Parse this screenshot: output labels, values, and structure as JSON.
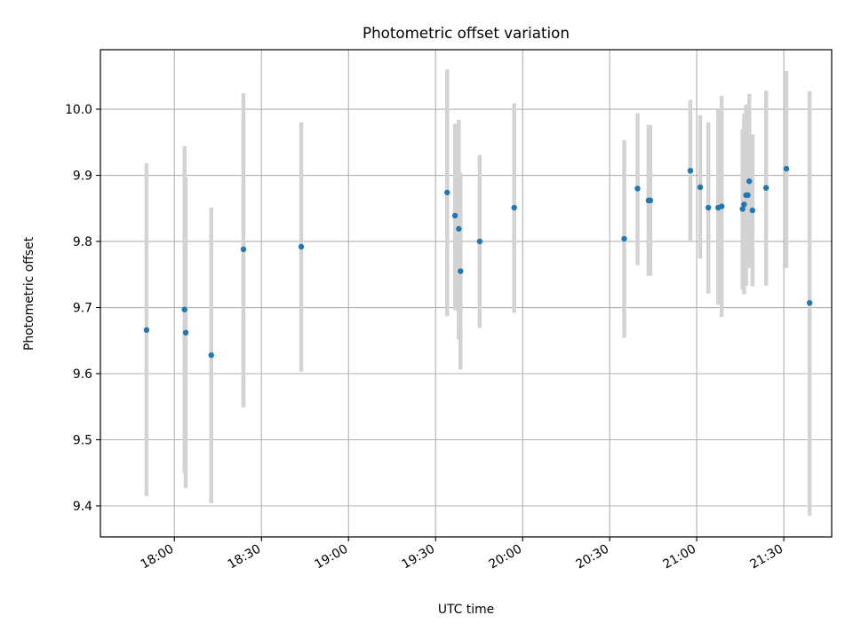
{
  "chart_data": {
    "type": "scatter",
    "title": "Photometric offset variation",
    "xlabel": "UTC time",
    "ylabel": "Photometric offset",
    "grid": true,
    "x_unit": "minutes since 00:00 UTC",
    "xlim": [
      1054.5,
      1306.5
    ],
    "ylim": [
      9.353,
      10.09
    ],
    "xticks": [
      {
        "value": 1080,
        "label": "18:00"
      },
      {
        "value": 1110,
        "label": "18:30"
      },
      {
        "value": 1140,
        "label": "19:00"
      },
      {
        "value": 1170,
        "label": "19:30"
      },
      {
        "value": 1200,
        "label": "20:00"
      },
      {
        "value": 1230,
        "label": "20:30"
      },
      {
        "value": 1260,
        "label": "21:00"
      },
      {
        "value": 1290,
        "label": "21:30"
      }
    ],
    "yticks": [
      {
        "value": 9.4,
        "label": "9.4"
      },
      {
        "value": 9.5,
        "label": "9.5"
      },
      {
        "value": 9.6,
        "label": "9.6"
      },
      {
        "value": 9.7,
        "label": "9.7"
      },
      {
        "value": 9.8,
        "label": "9.8"
      },
      {
        "value": 9.9,
        "label": "9.9"
      },
      {
        "value": 10.0,
        "label": "10.0"
      }
    ],
    "colors": {
      "marker": "#1f77b4",
      "errorbar": "#d3d3d3",
      "grid": "#b0b0b0"
    },
    "points": [
      {
        "x": 1070.4,
        "y": 9.666,
        "ylo": 9.415,
        "yhi": 9.918
      },
      {
        "x": 1083.5,
        "y": 9.697,
        "ylo": 9.45,
        "yhi": 9.944
      },
      {
        "x": 1083.9,
        "y": 9.662,
        "ylo": 9.427,
        "yhi": 9.897
      },
      {
        "x": 1092.7,
        "y": 9.628,
        "ylo": 9.404,
        "yhi": 9.851
      },
      {
        "x": 1103.8,
        "y": 9.788,
        "ylo": 9.549,
        "yhi": 10.024
      },
      {
        "x": 1123.7,
        "y": 9.792,
        "ylo": 9.603,
        "yhi": 9.98
      },
      {
        "x": 1174.0,
        "y": 9.874,
        "ylo": 9.687,
        "yhi": 10.06
      },
      {
        "x": 1176.7,
        "y": 9.839,
        "ylo": 9.696,
        "yhi": 9.978
      },
      {
        "x": 1178.0,
        "y": 9.819,
        "ylo": 9.652,
        "yhi": 9.984
      },
      {
        "x": 1178.6,
        "y": 9.755,
        "ylo": 9.606,
        "yhi": 9.904
      },
      {
        "x": 1185.2,
        "y": 9.8,
        "ylo": 9.669,
        "yhi": 9.931
      },
      {
        "x": 1197.1,
        "y": 9.851,
        "ylo": 9.692,
        "yhi": 10.009
      },
      {
        "x": 1235.0,
        "y": 9.804,
        "ylo": 9.654,
        "yhi": 9.953
      },
      {
        "x": 1239.6,
        "y": 9.88,
        "ylo": 9.764,
        "yhi": 9.994
      },
      {
        "x": 1243.4,
        "y": 9.862,
        "ylo": 9.748,
        "yhi": 9.976
      },
      {
        "x": 1244.0,
        "y": 9.862,
        "ylo": 9.748,
        "yhi": 9.976
      },
      {
        "x": 1257.8,
        "y": 9.907,
        "ylo": 9.799,
        "yhi": 10.014
      },
      {
        "x": 1261.2,
        "y": 9.882,
        "ylo": 9.774,
        "yhi": 9.991
      },
      {
        "x": 1264.0,
        "y": 9.851,
        "ylo": 9.721,
        "yhi": 9.98
      },
      {
        "x": 1267.4,
        "y": 9.851,
        "ylo": 9.704,
        "yhi": 9.999
      },
      {
        "x": 1268.6,
        "y": 9.853,
        "ylo": 9.686,
        "yhi": 10.02
      },
      {
        "x": 1275.8,
        "y": 9.849,
        "ylo": 9.727,
        "yhi": 9.97
      },
      {
        "x": 1276.3,
        "y": 9.856,
        "ylo": 9.72,
        "yhi": 9.993
      },
      {
        "x": 1277.0,
        "y": 9.87,
        "ylo": 9.733,
        "yhi": 10.007
      },
      {
        "x": 1277.6,
        "y": 9.87,
        "ylo": 9.76,
        "yhi": 9.98
      },
      {
        "x": 1278.1,
        "y": 9.891,
        "ylo": 9.76,
        "yhi": 10.023
      },
      {
        "x": 1279.2,
        "y": 9.847,
        "ylo": 9.732,
        "yhi": 9.962
      },
      {
        "x": 1283.9,
        "y": 9.881,
        "ylo": 9.733,
        "yhi": 10.028
      },
      {
        "x": 1290.9,
        "y": 9.91,
        "ylo": 9.76,
        "yhi": 10.058
      },
      {
        "x": 1298.9,
        "y": 9.707,
        "ylo": 9.385,
        "yhi": 10.027
      }
    ]
  }
}
